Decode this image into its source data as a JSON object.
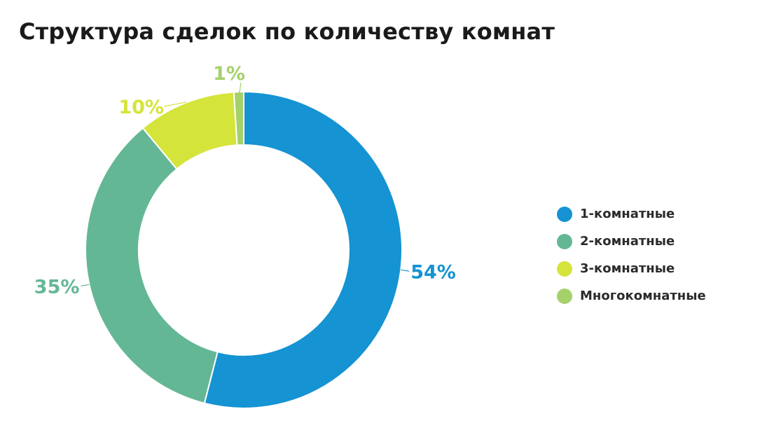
{
  "title": "Структура сделок по количеству комнат",
  "chart_data": {
    "type": "pie",
    "donut": true,
    "title": "Структура сделок по количеству комнат",
    "legend_position": "right",
    "slices": [
      {
        "name": "1-комнатные",
        "value": 54,
        "label": "54%",
        "color": "#1593d3"
      },
      {
        "name": "2-комнатные",
        "value": 35,
        "label": "35%",
        "color": "#64b795"
      },
      {
        "name": "3-комнатные",
        "value": 10,
        "label": "10%",
        "color": "#d5e43b"
      },
      {
        "name": "Многокомнатные",
        "value": 1,
        "label": "1%",
        "color": "#a5d16b"
      }
    ]
  }
}
